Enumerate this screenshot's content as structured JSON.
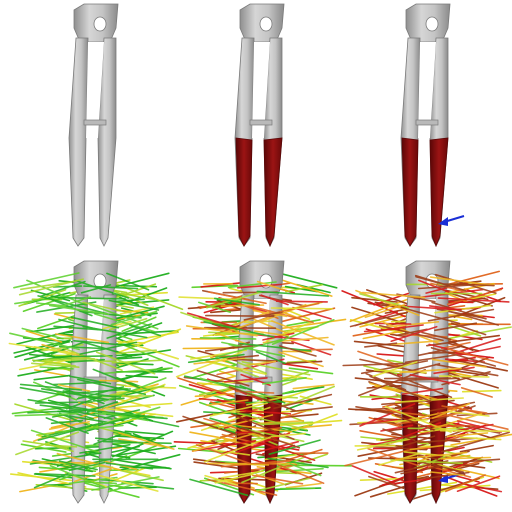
{
  "colors": {
    "background": "#ffffff",
    "tool_body": "#c9c9c9",
    "tool_shade": "#9b9b9b",
    "tool_edge": "#7a7a7a",
    "grip_red": "#8e1010",
    "grip_red_dark": "#5a0707",
    "arrow_blue": "#1a2fd6",
    "line_palette": [
      "#1fae1f",
      "#5bd12a",
      "#a6d82a",
      "#e0e02a",
      "#f0b51c",
      "#e0641c",
      "#d81818",
      "#9c3a14"
    ]
  },
  "grid": {
    "rows": 2,
    "cols": 3
  },
  "panels": [
    {
      "id": "top-plain",
      "grips": false,
      "arrow": false,
      "lines": "none"
    },
    {
      "id": "top-grips",
      "grips": true,
      "arrow": false,
      "lines": "none"
    },
    {
      "id": "top-grips-arrow",
      "grips": true,
      "arrow": true,
      "lines": "none"
    },
    {
      "id": "bottom-plain",
      "grips": false,
      "arrow": false,
      "lines": "green"
    },
    {
      "id": "bottom-grips",
      "grips": true,
      "arrow": false,
      "lines": "mixed"
    },
    {
      "id": "bottom-grips-arrow",
      "grips": true,
      "arrow": true,
      "lines": "red"
    }
  ]
}
